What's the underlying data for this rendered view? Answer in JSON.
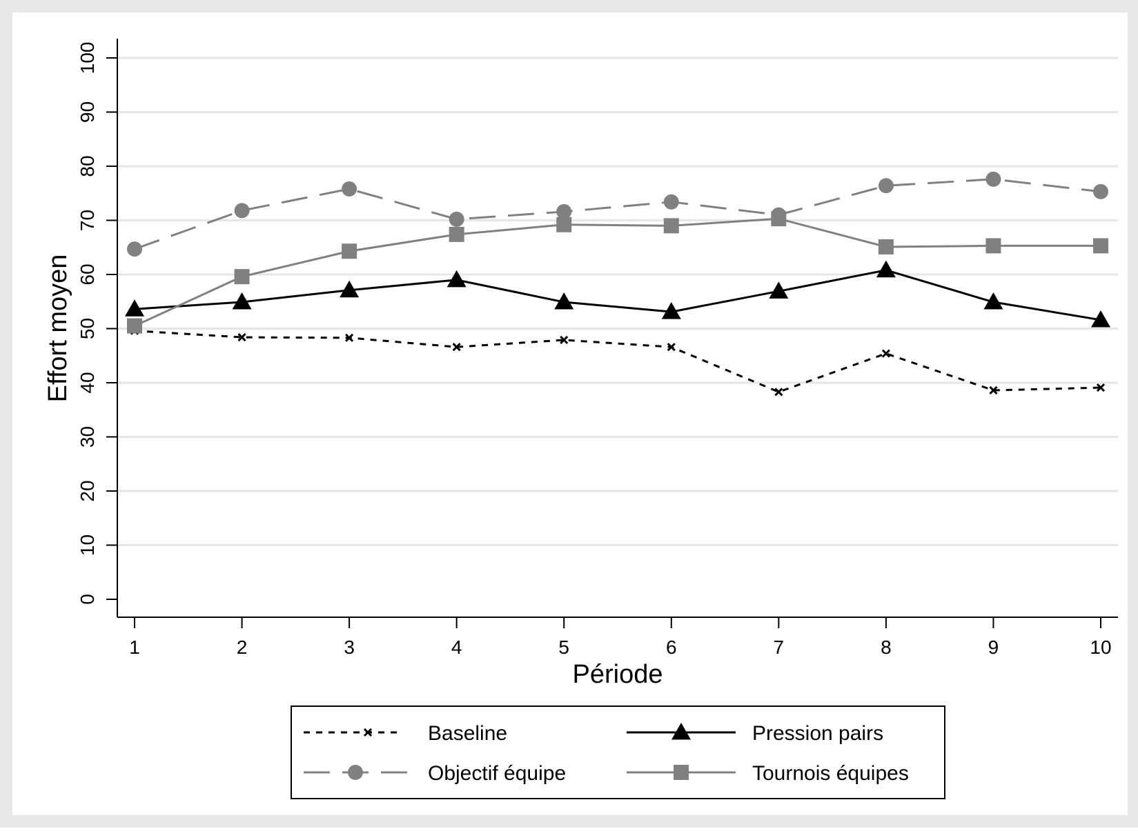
{
  "chart_data": {
    "type": "line",
    "title": "",
    "xlabel": "Période",
    "ylabel": "Effort moyen",
    "x": [
      1,
      2,
      3,
      4,
      5,
      6,
      7,
      8,
      9,
      10
    ],
    "xticks": [
      "1",
      "2",
      "3",
      "4",
      "5",
      "6",
      "7",
      "8",
      "9",
      "10"
    ],
    "yticks": [
      "0",
      "10",
      "20",
      "30",
      "40",
      "50",
      "60",
      "70",
      "80",
      "90",
      "100"
    ],
    "ylim": [
      0,
      100
    ],
    "xlim": [
      1,
      10
    ],
    "grid": "horizontal",
    "legend_position": "bottom",
    "series": [
      {
        "name": "Baseline",
        "values": [
          49.6,
          48.4,
          48.3,
          46.6,
          47.9,
          46.6,
          38.3,
          45.4,
          38.6,
          39.1
        ],
        "color": "#000000",
        "line_style": "dotted",
        "marker": "x"
      },
      {
        "name": "Pression pairs",
        "values": [
          53.6,
          54.9,
          57.1,
          59.0,
          54.9,
          53.1,
          56.9,
          60.8,
          54.9,
          51.6
        ],
        "color": "#000000",
        "line_style": "solid",
        "marker": "triangle"
      },
      {
        "name": "Objectif équipe",
        "values": [
          64.7,
          71.8,
          75.8,
          70.2,
          71.6,
          73.4,
          71.0,
          76.4,
          77.6,
          75.3
        ],
        "color": "#808080",
        "line_style": "long-dash",
        "marker": "circle"
      },
      {
        "name": "Tournois équipes",
        "values": [
          50.5,
          59.6,
          64.3,
          67.4,
          69.2,
          69.0,
          70.3,
          65.1,
          65.3,
          65.3
        ],
        "color": "#808080",
        "line_style": "solid",
        "marker": "square"
      }
    ],
    "colors": {
      "outer_background": "#e8e8e8",
      "plot_background": "#ffffff",
      "gridline": "#e6e6e6"
    }
  }
}
